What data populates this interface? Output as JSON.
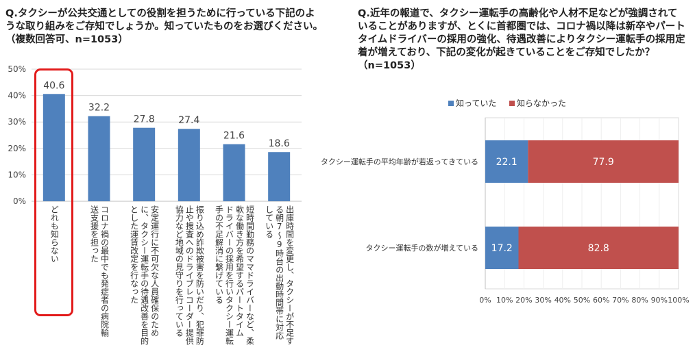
{
  "left_question": {
    "lines": [
      "Q.タクシーが公共交通としての役割を担うために行っている下記のよ",
      "うな取り組みをご存知でしょうか。知っていたものをお選びください。",
      "（複数回答可、n=1053）"
    ]
  },
  "right_question": {
    "lines": [
      "Q.近年の報道で、タクシー運転手の高齢化や人材不足などが強調されて",
      "いることがありますが、とくに首都圏では、コロナ禍以降は新卒やパート",
      "タイムドライバーの採用の強化、待遇改善によりタクシー運転手の採用定",
      "着が増えており、下記の変化が起きていることをご存知でしたか？",
      "（n=1053）"
    ]
  },
  "chart_data": [
    {
      "type": "bar",
      "categories": [
        "どれも知らない",
        "コロナ禍の最中でも発症者の病院輸送支援を担った",
        "安定運行に不可欠な人員確保のために、タクシー運転手の待遇改善を目的とした運賃改定を行なった",
        "振り込め詐欺被害を防いだり、犯罪防止や捜査へのドライブレコーダー提供協力など地域の見守りを行っている",
        "短時間勤務のママドライバーなど、柔軟な働き方を希望するパートタイムドライバーの採用を行いタクシー運転手の不足解消に繋げている",
        "出庫時間を変更し、タクシーが不足する朝7～9時台の出動時間帯に対応している"
      ],
      "category_lines": [
        [
          "どれも知らない"
        ],
        [
          "コロナ禍の最中でも発症者の病院輸",
          "送支援を担った"
        ],
        [
          "安定運行に不可欠な人員確保のため",
          "に、タクシー運転手の待遇改善を目的",
          "とした運賃改定を行なった"
        ],
        [
          "振り込め詐欺被害を防いだり、犯罪防",
          "止や捜査へのドライブレコーダー提供",
          "協力など地域の見守りを行っている"
        ],
        [
          "短時間勤務のママドライバーなど、柔",
          "軟な働き方を希望するパートタイム",
          "ドライバーの採用を行いタクシー運転",
          "手の不足解消に繋げている"
        ],
        [
          "出庫時間を変更し、タクシーが不足す",
          "る朝7～9時台の出動時間帯に対応",
          "している"
        ]
      ],
      "values": [
        40.6,
        32.2,
        27.8,
        27.4,
        21.6,
        18.6
      ],
      "value_labels": [
        "40.6",
        "32.2",
        "27.8",
        "27.4",
        "21.6",
        "18.6"
      ],
      "ylim": [
        0,
        50
      ],
      "yticks": [
        0,
        10,
        20,
        30,
        40,
        50
      ],
      "ytick_labels": [
        "0%",
        "10%",
        "20%",
        "30%",
        "40%",
        "50%"
      ],
      "color": "#4f81bd",
      "highlight_color": "#e21b1b",
      "highlighted_category": "どれも知らない"
    },
    {
      "type": "bar",
      "orientation": "horizontal",
      "stacked": true,
      "legend_position": "top",
      "categories": [
        "タクシー運転手の平均年齢が若返ってきている",
        "タクシー運転手の数が増えている"
      ],
      "series": [
        {
          "name": "知っていた",
          "color": "#4f81bd",
          "values": [
            22.1,
            17.2
          ],
          "value_labels": [
            "22.1",
            "17.2"
          ]
        },
        {
          "name": "知らなかった",
          "color": "#c0504d",
          "values": [
            77.9,
            82.8
          ],
          "value_labels": [
            "77.9",
            "82.8"
          ]
        }
      ],
      "xlim": [
        0,
        100
      ],
      "xticks": [
        0,
        10,
        20,
        30,
        40,
        50,
        60,
        70,
        80,
        90,
        100
      ],
      "xtick_labels": [
        "0%",
        "10%",
        "20%",
        "30%",
        "40%",
        "50%",
        "60%",
        "70%",
        "80%",
        "90%",
        "100%"
      ]
    }
  ]
}
